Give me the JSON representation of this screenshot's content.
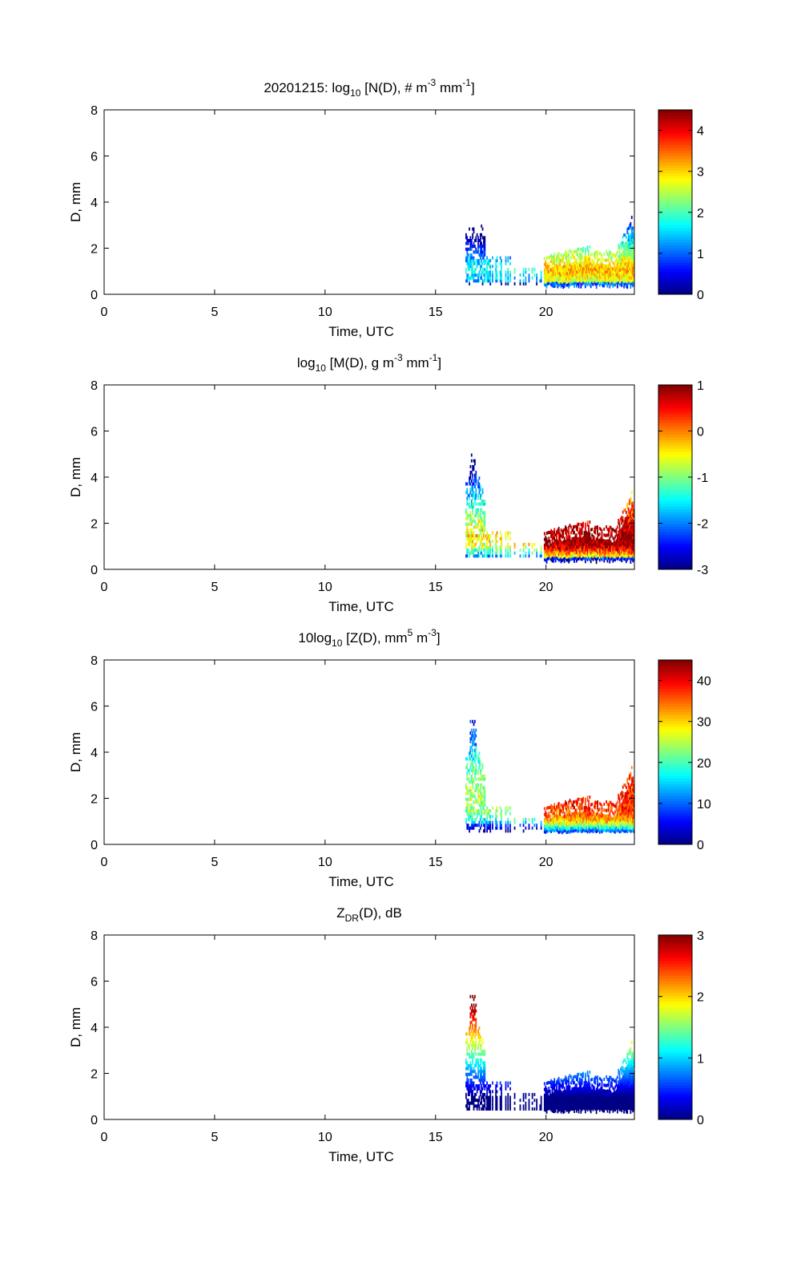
{
  "chart_data": [
    {
      "type": "heatmap",
      "title": "20201215: log10 [N(D), # m-3 mm-1]",
      "title_parts": [
        {
          "t": "20201215: log",
          "s": "n"
        },
        {
          "t": "10",
          "s": "sub"
        },
        {
          "t": " [N(D), # m",
          "s": "n"
        },
        {
          "t": "-3",
          "s": "sup"
        },
        {
          "t": " mm",
          "s": "n"
        },
        {
          "t": "-1",
          "s": "sup"
        },
        {
          "t": "]",
          "s": "n"
        }
      ],
      "xlabel": "Time, UTC",
      "ylabel": "D, mm",
      "xlim": [
        0,
        24
      ],
      "ylim": [
        0,
        8
      ],
      "xticks": [
        0,
        5,
        10,
        15,
        20
      ],
      "yticks": [
        0,
        2,
        4,
        6,
        8
      ],
      "clim": [
        0,
        4.5
      ],
      "cticks": [
        0,
        1,
        2,
        3,
        4
      ],
      "colormap": "jet",
      "field": "N"
    },
    {
      "type": "heatmap",
      "title": "log10 [M(D), g m-3 mm-1]",
      "title_parts": [
        {
          "t": "log",
          "s": "n"
        },
        {
          "t": "10",
          "s": "sub"
        },
        {
          "t": " [M(D), g m",
          "s": "n"
        },
        {
          "t": "-3",
          "s": "sup"
        },
        {
          "t": " mm",
          "s": "n"
        },
        {
          "t": "-1",
          "s": "sup"
        },
        {
          "t": "]",
          "s": "n"
        }
      ],
      "xlabel": "Time, UTC",
      "ylabel": "D, mm",
      "xlim": [
        0,
        24
      ],
      "ylim": [
        0,
        8
      ],
      "xticks": [
        0,
        5,
        10,
        15,
        20
      ],
      "yticks": [
        0,
        2,
        4,
        6,
        8
      ],
      "clim": [
        -3,
        1
      ],
      "cticks": [
        -3,
        -2,
        -1,
        0,
        1
      ],
      "colormap": "jet",
      "field": "M"
    },
    {
      "type": "heatmap",
      "title": "10log10 [Z(D),  mm5 m-3]",
      "title_parts": [
        {
          "t": "10log",
          "s": "n"
        },
        {
          "t": "10",
          "s": "sub"
        },
        {
          "t": " [Z(D),  mm",
          "s": "n"
        },
        {
          "t": "5",
          "s": "sup"
        },
        {
          "t": " m",
          "s": "n"
        },
        {
          "t": "-3",
          "s": "sup"
        },
        {
          "t": "]",
          "s": "n"
        }
      ],
      "xlabel": "Time, UTC",
      "ylabel": "D, mm",
      "xlim": [
        0,
        24
      ],
      "ylim": [
        0,
        8
      ],
      "xticks": [
        0,
        5,
        10,
        15,
        20
      ],
      "yticks": [
        0,
        2,
        4,
        6,
        8
      ],
      "clim": [
        0,
        45
      ],
      "cticks": [
        0,
        10,
        20,
        30,
        40
      ],
      "colormap": "jet",
      "field": "Z"
    },
    {
      "type": "heatmap",
      "title": "ZDR(D), dB",
      "title_parts": [
        {
          "t": "Z",
          "s": "n"
        },
        {
          "t": "DR",
          "s": "sub"
        },
        {
          "t": "(D), dB",
          "s": "n"
        }
      ],
      "xlabel": "Time, UTC",
      "ylabel": "D, mm",
      "xlim": [
        0,
        24
      ],
      "ylim": [
        0,
        8
      ],
      "xticks": [
        0,
        5,
        10,
        15,
        20
      ],
      "yticks": [
        0,
        2,
        4,
        6,
        8
      ],
      "clim": [
        0,
        3
      ],
      "cticks": [
        0,
        1,
        2,
        3
      ],
      "colormap": "jet",
      "field": "ZDR"
    }
  ]
}
